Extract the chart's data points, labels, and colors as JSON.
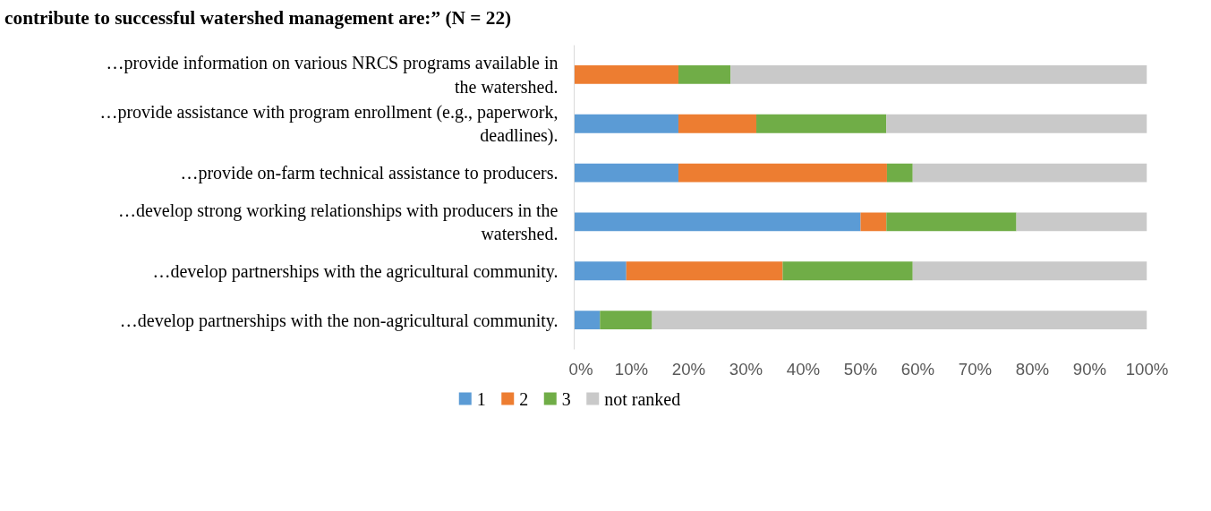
{
  "chart_data": {
    "type": "bar",
    "orientation": "horizontal",
    "stacked": true,
    "title": "contribute to successful watershed management are:” (N = 22)",
    "categories": [
      "…provide information on various NRCS programs available in the watershed.",
      "…provide assistance with program enrollment (e.g., paperwork, deadlines).",
      "…provide on-farm technical assistance to producers.",
      "…develop strong working relationships with producers in the watershed.",
      "…develop partnerships with the agricultural community.",
      "…develop partnerships with the non-agricultural community."
    ],
    "series": [
      {
        "name": "1",
        "color": "#5b9bd5",
        "values": [
          0,
          18.2,
          18.2,
          50.0,
          9.1,
          4.5
        ]
      },
      {
        "name": "2",
        "color": "#ed7d31",
        "values": [
          18.2,
          13.6,
          36.4,
          4.5,
          27.3,
          0
        ]
      },
      {
        "name": "3",
        "color": "#70ad47",
        "values": [
          9.1,
          22.7,
          4.5,
          22.7,
          22.7,
          9.1
        ]
      },
      {
        "name": "not ranked",
        "color": "#c9c9c9",
        "values": [
          72.7,
          45.5,
          40.9,
          22.8,
          40.9,
          86.4
        ]
      }
    ],
    "xlim": [
      0,
      100
    ],
    "xticks": [
      {
        "value": 0,
        "label": "0%"
      },
      {
        "value": 10,
        "label": "10%"
      },
      {
        "value": 20,
        "label": "20%"
      },
      {
        "value": 30,
        "label": "30%"
      },
      {
        "value": 40,
        "label": "40%"
      },
      {
        "value": 50,
        "label": "50%"
      },
      {
        "value": 60,
        "label": "60%"
      },
      {
        "value": 70,
        "label": "70%"
      },
      {
        "value": 80,
        "label": "80%"
      },
      {
        "value": 90,
        "label": "90%"
      },
      {
        "value": 100,
        "label": "100%"
      }
    ],
    "legend": "bottom",
    "grid": false
  }
}
